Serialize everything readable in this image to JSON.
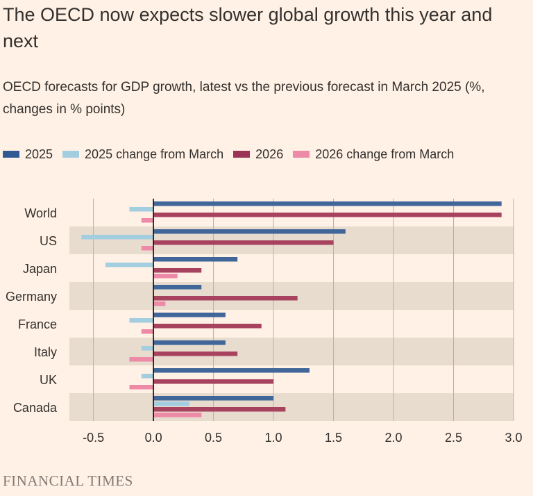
{
  "title": "The OECD now expects slower global growth this year and next",
  "subtitle": "OECD forecasts for GDP growth, latest vs the previous forecast in March 2025 (%, changes in % points)",
  "source": "FINANCIAL TIMES",
  "colors": {
    "s2025": "#41669a",
    "s2025change": "#a3cee0",
    "s2026": "#a8435f",
    "s2026change": "#ec8aa8",
    "band": "#e8dccf",
    "grid": "#b8b0a8",
    "text": "#33302e"
  },
  "chart_data": {
    "type": "bar",
    "orientation": "horizontal",
    "categories": [
      "World",
      "US",
      "Japan",
      "Germany",
      "France",
      "Italy",
      "UK",
      "Canada"
    ],
    "series": [
      {
        "name": "2025",
        "values": [
          2.9,
          1.6,
          0.7,
          0.4,
          0.6,
          0.6,
          1.3,
          1.0
        ]
      },
      {
        "name": "2025 change from March",
        "values": [
          -0.2,
          -0.6,
          -0.4,
          0.0,
          -0.2,
          -0.1,
          -0.1,
          0.3
        ]
      },
      {
        "name": "2026",
        "values": [
          2.9,
          1.5,
          0.4,
          1.2,
          0.9,
          0.7,
          1.0,
          1.1
        ]
      },
      {
        "name": "2026 change from March",
        "values": [
          -0.1,
          -0.1,
          0.2,
          0.1,
          -0.1,
          -0.2,
          -0.2,
          0.4
        ]
      }
    ],
    "xlim": [
      -0.7,
      3.0
    ],
    "xticks": [
      "-0.5",
      "0.0",
      "0.5",
      "1.0",
      "1.5",
      "2.0",
      "2.5",
      "3.0"
    ],
    "legend_position": "top-left"
  }
}
